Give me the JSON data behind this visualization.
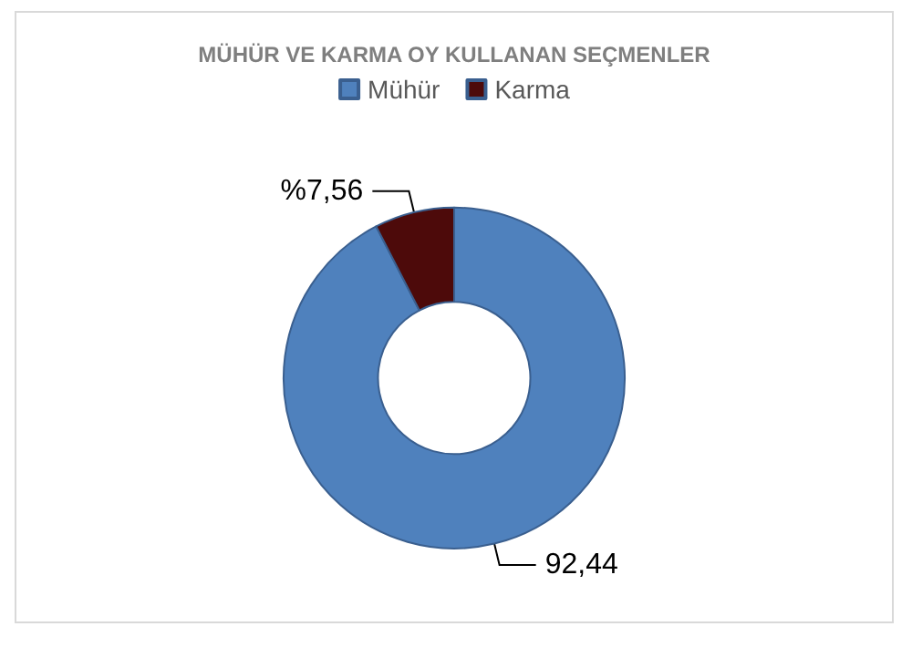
{
  "chart_data": {
    "type": "donut",
    "title": "MÜHÜR VE KARMA OY KULLANAN SEÇMENLER",
    "categories": [
      "Mühür",
      "Karma"
    ],
    "values": [
      92.44,
      7.56
    ],
    "colors": [
      "#4f81bd",
      "#4d0a0a"
    ],
    "value_labels": [
      "92,44",
      "%7,56"
    ],
    "legend": "top"
  }
}
